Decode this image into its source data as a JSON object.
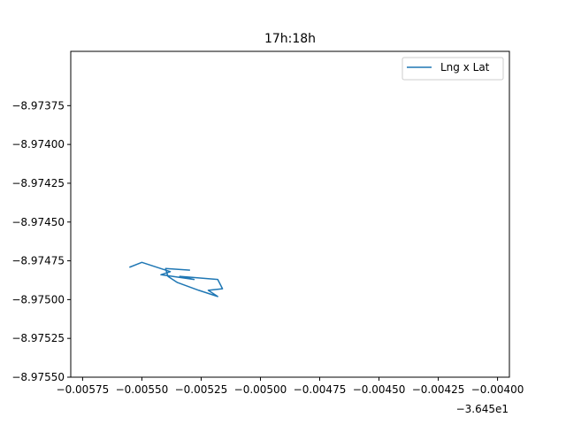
{
  "chart_data": {
    "type": "line",
    "title": "17h:18h",
    "xlabel": "",
    "ylabel": "",
    "x_offset_label": "−3.645e1",
    "xlim": [
      -0.0058,
      -0.00395
    ],
    "ylim": [
      -8.9755,
      -8.9734
    ],
    "x_ticks": [
      -0.00575,
      -0.0055,
      -0.00525,
      -0.005,
      -0.00475,
      -0.0045,
      -0.00425,
      -0.004
    ],
    "x_tick_labels": [
      "−0.00575",
      "−0.00550",
      "−0.00525",
      "−0.00500",
      "−0.00475",
      "−0.00450",
      "−0.00425",
      "−0.00400"
    ],
    "y_ticks": [
      -8.97375,
      -8.974,
      -8.97425,
      -8.9745,
      -8.97475,
      -8.975,
      -8.97525,
      -8.9755
    ],
    "y_tick_labels": [
      "−8.97375",
      "−8.97400",
      "−8.97425",
      "−8.97450",
      "−8.97475",
      "−8.97500",
      "−8.97525",
      "−8.97550"
    ],
    "grid": false,
    "legend_position": "top-right",
    "series": [
      {
        "name": "Lng x Lat",
        "color": "#1f77b4",
        "x": [
          -0.00555,
          -0.0055,
          -0.00538,
          -0.00542,
          -0.00528,
          -0.00534,
          -0.00518,
          -0.00516,
          -0.00522,
          -0.00518,
          -0.00526,
          -0.00535,
          -0.00539,
          -0.0054,
          -0.0053
        ],
        "y": [
          -8.97479,
          -8.97476,
          -8.97482,
          -8.97484,
          -8.97487,
          -8.97485,
          -8.97487,
          -8.97493,
          -8.97494,
          -8.97498,
          -8.97494,
          -8.97489,
          -8.97485,
          -8.9748,
          -8.97481
        ]
      }
    ]
  }
}
